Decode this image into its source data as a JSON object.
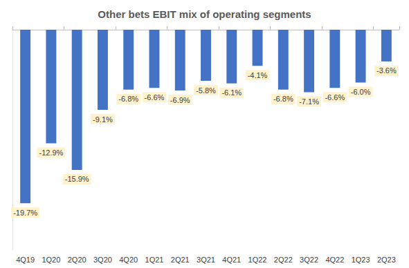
{
  "chart_data": {
    "type": "bar",
    "title": "Other bets EBIT mix of operating segments",
    "categories": [
      "4Q19",
      "1Q20",
      "2Q20",
      "3Q20",
      "4Q20",
      "1Q21",
      "2Q21",
      "3Q21",
      "4Q21",
      "1Q22",
      "2Q22",
      "3Q22",
      "4Q22",
      "1Q23",
      "2Q23"
    ],
    "values": [
      -19.7,
      -12.9,
      -15.9,
      -9.1,
      -6.8,
      -6.6,
      -6.9,
      -5.8,
      -6.1,
      -4.1,
      -6.8,
      -7.1,
      -6.6,
      -6.0,
      -3.6
    ],
    "value_labels": [
      "-19.7%",
      "-12.9%",
      "-15.9%",
      "-9.1%",
      "-6.8%",
      "-6.6%",
      "-6.9%",
      "-5.8%",
      "-6.1%",
      "-4.1%",
      "-6.8%",
      "-7.1%",
      "-6.6%",
      "-6.0%",
      "-3.6%"
    ],
    "color": "#4472c4",
    "ylim": [
      -25,
      0
    ],
    "grid": false,
    "data_labels": true,
    "tick_labels": "x"
  }
}
